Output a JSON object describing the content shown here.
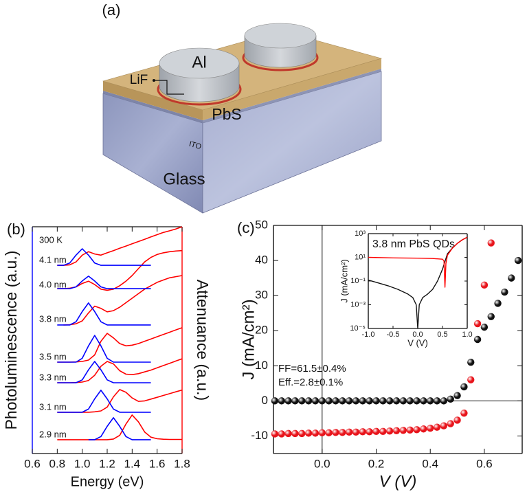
{
  "panel_a": {
    "label": "(a)",
    "electrode": "Al",
    "interlayer": "LiF",
    "absorber": "PbS",
    "anode": "ITO",
    "substrate": "Glass"
  },
  "chart_data": [
    {
      "type": "line",
      "label": "(b)",
      "xlabel": "Energy (eV)",
      "ylabel": "Photoluminescence (a.u.)",
      "y2label": "Attenuance (a.u.)",
      "y_color": "#0000ff",
      "y2_color": "#ff0000",
      "xlim": [
        0.6,
        1.8
      ],
      "xticks": [
        0.6,
        0.8,
        {
          "value": 1,
          "label": "1.0"
        },
        1.2,
        1.4,
        1.6,
        1.8
      ],
      "ylim": [
        0,
        10
      ],
      "annotations": [
        "300 K",
        "4.1 nm",
        "4.0 nm",
        "3.8 nm",
        "3.5 nm",
        "3.3 nm",
        "3.1 nm",
        "2.9 nm"
      ],
      "x": [
        0.8,
        0.85,
        0.9,
        0.95,
        1.0,
        1.05,
        1.1,
        1.15,
        1.2,
        1.25,
        1.3,
        1.35,
        1.4,
        1.45,
        1.5,
        1.55,
        1.6,
        1.65,
        1.7,
        1.75,
        1.8
      ],
      "series": [
        {
          "color": "#ff0000",
          "values": [
            8.3,
            8.3,
            8.32,
            8.45,
            8.75,
            8.9,
            8.8,
            8.75,
            8.85,
            8.95,
            9.05,
            9.15,
            9.25,
            9.35,
            9.45,
            9.55,
            9.65,
            9.75,
            9.82,
            9.9,
            10
          ]
        },
        {
          "color": "#ff0000",
          "values": [
            7.27,
            7.27,
            7.29,
            7.35,
            7.5,
            7.6,
            7.45,
            7.25,
            7.2,
            7.25,
            7.4,
            7.6,
            7.85,
            8.15,
            8.45,
            8.65,
            8.78,
            8.85,
            8.9,
            8.93,
            8.95
          ]
        },
        {
          "color": "#ff0000",
          "values": [
            null,
            5.67,
            5.68,
            5.72,
            5.85,
            6.2,
            6.5,
            6.4,
            6.25,
            6.3,
            6.45,
            6.65,
            6.85,
            7.05,
            7.25,
            7.4,
            7.55,
            7.65,
            7.75,
            7.8,
            7.85
          ]
        },
        {
          "color": "#ff0000",
          "values": [
            4.03,
            4.03,
            4.03,
            4.04,
            4.06,
            4.12,
            4.35,
            4.95,
            5.3,
            5.1,
            4.85,
            4.75,
            4.78,
            4.85,
            4.95,
            5.05,
            5.15,
            5.25,
            5.35,
            5.45,
            5.55
          ]
        },
        {
          "color": "#ff0000",
          "values": [
            3.12,
            3.12,
            3.12,
            3.13,
            3.15,
            3.22,
            3.45,
            3.85,
            4.06,
            3.95,
            3.65,
            3.5,
            3.48,
            3.52,
            3.6,
            3.68,
            3.78,
            3.88,
            3.98,
            4.08,
            4.18
          ]
        },
        {
          "color": "#ff0000",
          "values": [
            1.82,
            1.82,
            1.82,
            1.82,
            1.82,
            1.82,
            1.84,
            1.88,
            2.05,
            2.5,
            2.82,
            2.7,
            2.45,
            2.3,
            2.32,
            2.4,
            2.48,
            2.56,
            2.64,
            2.72,
            2.8
          ]
        },
        {
          "color": "#ff0000",
          "values": [
            0.61,
            0.61,
            0.61,
            0.61,
            0.61,
            0.61,
            0.61,
            0.61,
            0.61,
            0.64,
            0.8,
            1.3,
            1.7,
            1.4,
            0.95,
            0.72,
            0.65,
            0.63,
            0.62,
            0.62,
            0.62
          ]
        },
        {
          "color": "#0000ff",
          "values": [
            8.3,
            8.3,
            8.4,
            8.75,
            9.03,
            8.75,
            8.4,
            8.3,
            8.3,
            8.3,
            8.3,
            8.3,
            8.3,
            8.3,
            8.3,
            8.3,
            null,
            null,
            null,
            null,
            null
          ]
        },
        {
          "color": "#0000ff",
          "values": [
            7.27,
            7.27,
            7.27,
            7.35,
            7.61,
            7.82,
            7.61,
            7.35,
            7.27,
            7.27,
            7.27,
            7.27,
            7.27,
            7.27,
            7.27,
            7.27,
            null,
            null,
            null,
            null,
            null
          ]
        },
        {
          "color": "#0000ff",
          "values": [
            5.67,
            5.67,
            5.67,
            5.81,
            6.26,
            6.64,
            6.26,
            5.81,
            5.67,
            5.67,
            5.67,
            5.67,
            5.67,
            5.67,
            5.67,
            5.67,
            null,
            null,
            null,
            null,
            null
          ]
        },
        {
          "color": "#0000ff",
          "values": [
            4.03,
            4.03,
            4.03,
            4.03,
            4.2,
            4.75,
            5.21,
            4.75,
            4.2,
            4.03,
            4.03,
            4.03,
            4.03,
            4.03,
            4.03,
            4.03,
            null,
            null,
            null,
            null,
            null
          ]
        },
        {
          "color": "#0000ff",
          "values": [
            3.12,
            3.12,
            3.12,
            3.12,
            3.25,
            3.69,
            4.06,
            3.69,
            3.25,
            3.12,
            3.12,
            3.12,
            3.12,
            3.12,
            3.12,
            3.12,
            null,
            null,
            null,
            null,
            null
          ]
        },
        {
          "color": "#0000ff",
          "values": [
            1.82,
            1.82,
            1.82,
            1.82,
            1.82,
            1.96,
            2.41,
            2.79,
            2.41,
            1.96,
            1.82,
            1.82,
            1.82,
            1.82,
            1.82,
            1.82,
            null,
            null,
            null,
            null,
            null
          ]
        },
        {
          "color": "#0000ff",
          "values": [
            null,
            null,
            null,
            null,
            null,
            0.61,
            0.61,
            0.75,
            1.2,
            1.58,
            1.2,
            0.75,
            0.61,
            0.61,
            0.61,
            0.61,
            null,
            null,
            null,
            null,
            null
          ]
        }
      ]
    },
    {
      "type": "scatter",
      "label": "(c)",
      "xlabel": "V (V)",
      "ylabel": "J (mA/cm²)",
      "zero_lines": true,
      "xlim": [
        -0.18,
        0.74
      ],
      "xticks": [
        {
          "value": 0,
          "label": "0.0"
        },
        0.2,
        0.4,
        0.6
      ],
      "ylim": [
        -15,
        50
      ],
      "yticks": [
        -10,
        0,
        10,
        20,
        30,
        40,
        50
      ],
      "annotations": [
        "FF=61.5±0.4%",
        "Eff.=2.8±0.1%"
      ],
      "annotation_color": "#e8141b",
      "x": [
        -0.175,
        -0.15,
        -0.125,
        -0.1,
        -0.075,
        -0.05,
        -0.025,
        0,
        0.025,
        0.05,
        0.075,
        0.1,
        0.125,
        0.15,
        0.175,
        0.2,
        0.225,
        0.25,
        0.275,
        0.3,
        0.325,
        0.35,
        0.375,
        0.4,
        0.425,
        0.45,
        0.475,
        0.5,
        0.525,
        0.55,
        0.575,
        0.6,
        0.625,
        0.65,
        0.675,
        0.7,
        0.725
      ],
      "series": [
        {
          "color": "#e8141b",
          "values": [
            -9.4,
            -9.4,
            -9.3,
            -9.3,
            -9.3,
            -9.2,
            -9.2,
            -9.1,
            -9.1,
            -9.0,
            -9.0,
            -8.9,
            -8.9,
            -8.8,
            -8.8,
            -8.7,
            -8.7,
            -8.6,
            -8.5,
            -8.4,
            -8.3,
            -8.2,
            -8.0,
            -7.8,
            -7.5,
            -7.1,
            -6.5,
            -5.5,
            -3.5,
            6,
            22,
            33,
            45,
            null,
            null,
            null,
            null
          ]
        },
        {
          "color": "#111111",
          "values": [
            0,
            0,
            0,
            0,
            0,
            0,
            0,
            0,
            0,
            0,
            0,
            0,
            0,
            0,
            0,
            0,
            0,
            0,
            0,
            0,
            0,
            0,
            0,
            0,
            0,
            0,
            0.5,
            1.5,
            4,
            11,
            17.5,
            21,
            24,
            27.8,
            31,
            35,
            40
          ]
        }
      ]
    },
    {
      "type": "line",
      "title": "3.8 nm PbS QDs",
      "xlabel": "V (V)",
      "ylabel": "J (mA/cm²)",
      "ylog": true,
      "xlim": [
        -1,
        1
      ],
      "xticks": [
        {
          "value": -1,
          "label": "-1.0"
        },
        -0.5,
        {
          "value": 0,
          "label": "0.0"
        },
        0.5,
        {
          "value": 1,
          "label": "1.0"
        }
      ],
      "ylim": [
        1e-05,
        1000
      ],
      "yticks": [
        {
          "value": 1e-05,
          "label": "10⁻⁵"
        },
        {
          "value": 0.001,
          "label": "10⁻³"
        },
        {
          "value": 0.1,
          "label": "10⁻¹"
        },
        {
          "value": 10,
          "label": "10¹"
        },
        {
          "value": 1000,
          "label": "10³"
        }
      ],
      "series": [
        {
          "color": "#111111",
          "x": [
            -1,
            -0.8,
            -0.6,
            -0.4,
            -0.2,
            -0.1,
            -0.03,
            0,
            0.03,
            0.1,
            0.2,
            0.3,
            0.4,
            0.5,
            0.6,
            0.7,
            0.8,
            0.9,
            1.0
          ],
          "values": [
            0.12,
            0.07,
            0.04,
            0.02,
            0.008,
            0.004,
            0.001,
            1e-05,
            0.001,
            0.004,
            0.008,
            0.02,
            0.1,
            1,
            20,
            60,
            150,
            300,
            500
          ]
        },
        {
          "color": "#ff0000",
          "x": [
            -1,
            -0.5,
            0,
            0.3,
            0.5,
            0.53,
            0.55,
            0.57,
            0.6,
            0.7,
            0.8,
            0.9,
            1.0
          ],
          "values": [
            10,
            9,
            8.5,
            8,
            7,
            5,
            0.03,
            3,
            15,
            60,
            150,
            300,
            500
          ]
        }
      ]
    }
  ]
}
